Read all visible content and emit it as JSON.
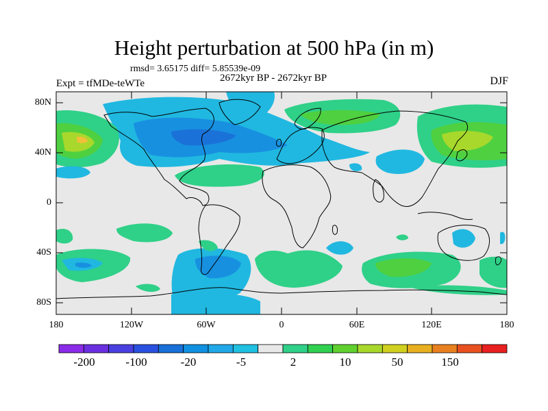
{
  "title": "Height perturbation at 500 hPa (in m)",
  "stats": "rmsd= 3.65175 diff= 5.85539e-09",
  "period": "2672kyr BP - 2672kyr BP",
  "experiment": "Expt = tfMDe-teWTe",
  "season": "DJF",
  "colors": {
    "background": "#e8e8e8",
    "coast": "#000000",
    "pos_light": "#2fd088",
    "pos_mid": "#4fd040",
    "pos_strong": "#a8d82c",
    "pos_max": "#f0c038",
    "neg_light": "#20b0e8",
    "neg_mid": "#1090e0",
    "neg_strong": "#1870d8"
  },
  "axes": {
    "y_ticks": [
      "80N",
      "40N",
      "0",
      "40S",
      "80S"
    ],
    "x_ticks": [
      "180",
      "120W",
      "60W",
      "0",
      "60E",
      "120E",
      "180"
    ]
  },
  "colorbar": {
    "colors": [
      "#8a2be8",
      "#6a30e0",
      "#4a40e0",
      "#2a50e0",
      "#1870d8",
      "#1090e0",
      "#20a8e8",
      "#20c0e0",
      "#e8e8e8",
      "#2fd088",
      "#30d050",
      "#60d030",
      "#a8d82c",
      "#d0d020",
      "#e8b020",
      "#e88020",
      "#e85020",
      "#e82020"
    ],
    "labels": [
      "-200",
      "-100",
      "-20",
      "-5",
      "2",
      "10",
      "50",
      "150"
    ]
  }
}
